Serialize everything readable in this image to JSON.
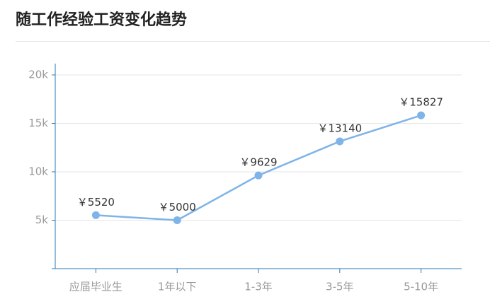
{
  "chart_data": {
    "type": "line",
    "title": "随工作经验工资变化趋势",
    "categories": [
      "应届毕业生",
      "1年以下",
      "1-3年",
      "3-5年",
      "5-10年"
    ],
    "values": [
      5520,
      5000,
      9629,
      13140,
      15827
    ],
    "value_labels": [
      "￥5520",
      "￥5000",
      "￥9629",
      "￥13140",
      "￥15827"
    ],
    "color": "#7eb4e8",
    "ylim": [
      0,
      20000
    ],
    "yticks": [
      {
        "value": 5000,
        "label": "5k"
      },
      {
        "value": 10000,
        "label": "10k"
      },
      {
        "value": 15000,
        "label": "15k"
      },
      {
        "value": 20000,
        "label": "20k"
      }
    ],
    "grid": true
  }
}
